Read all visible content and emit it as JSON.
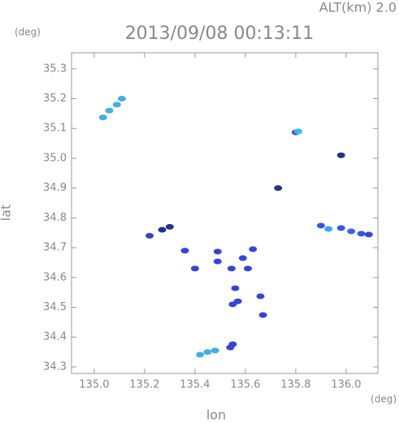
{
  "chart_data": {
    "type": "scatter",
    "title": "2013/09/08 00:13:11",
    "altitude_label": "ALT(km) 2.0",
    "y_unit": "(deg)",
    "x_unit": "(deg)",
    "x_label": "lon",
    "y_label": "lat",
    "xlim": [
      134.91,
      136.126
    ],
    "ylim": [
      34.278,
      35.354
    ],
    "xticks": [
      {
        "value": 135,
        "label": "135.0"
      },
      135.2,
      135.4,
      135.6,
      135.8,
      {
        "value": 136,
        "label": "136.0"
      }
    ],
    "yticks": [
      34.3,
      34.4,
      34.5,
      34.6,
      34.7,
      34.8,
      34.9,
      {
        "value": 35,
        "label": "35.0"
      },
      35.1,
      35.2,
      35.3
    ],
    "x": [
      135.035,
      135.06,
      135.09,
      135.11,
      135.8,
      135.81,
      135.98,
      135.73,
      135.9,
      135.93,
      135.98,
      136.02,
      136.06,
      136.09,
      135.22,
      135.27,
      135.3,
      135.36,
      135.4,
      135.49,
      135.49,
      135.545,
      135.59,
      135.63,
      135.61,
      135.56,
      135.55,
      135.57,
      135.67,
      135.66,
      135.42,
      135.45,
      135.48,
      135.55,
      135.54
    ],
    "values": [
      35.137,
      35.16,
      35.18,
      35.2,
      35.087,
      35.09,
      35.01,
      34.9,
      34.774,
      34.763,
      34.766,
      34.755,
      34.747,
      34.744,
      34.74,
      34.76,
      34.77,
      34.69,
      34.63,
      34.654,
      34.687,
      34.63,
      34.665,
      34.695,
      34.63,
      34.564,
      34.51,
      34.52,
      34.474,
      34.537,
      34.341,
      34.35,
      34.355,
      34.376,
      34.365
    ],
    "colors": [
      "#3fb0e0",
      "#3fb0e0",
      "#3fb0e0",
      "#3fb0e0",
      "#3355ee",
      "#33bbee",
      "#223388",
      "#223388",
      "#3355ee",
      "#33aaee",
      "#3355ee",
      "#3366ee",
      "#3355ee",
      "#3344dd",
      "#3344cc",
      "#223388",
      "#223388",
      "#3344dd",
      "#3344dd",
      "#3344dd",
      "#3344dd",
      "#3344dd",
      "#3344dd",
      "#3344dd",
      "#3344dd",
      "#3344dd",
      "#3344dd",
      "#3344dd",
      "#3344dd",
      "#3344dd",
      "#3fb0e0",
      "#3fb0e0",
      "#3fb0e0",
      "#3344dd",
      "#3344dd"
    ]
  }
}
